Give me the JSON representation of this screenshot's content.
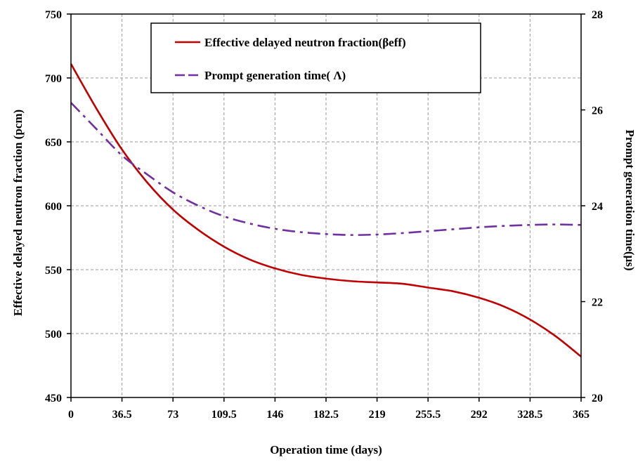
{
  "chart_data": {
    "type": "line",
    "title": "",
    "xlabel": "Operation time (days)",
    "ylabel_left": "Effective delayed neutron fraction (pcm)",
    "ylabel_right": "Prompt generation time(μs)",
    "xlim": [
      0,
      365
    ],
    "ylim_left": [
      450,
      750
    ],
    "ylim_right": [
      20,
      28
    ],
    "x_ticks": [
      "0",
      "36.5",
      "73",
      "109.5",
      "146",
      "182.5",
      "219",
      "255.5",
      "292",
      "328.5",
      "365"
    ],
    "y_ticks_left": [
      "450",
      "500",
      "550",
      "600",
      "650",
      "700",
      "750"
    ],
    "y_ticks_right": [
      "20",
      "22",
      "24",
      "26",
      "28"
    ],
    "grid": true,
    "legend_position": "top-center",
    "series": [
      {
        "name": "Effective delayed neutron fraction(βeff)",
        "axis": "left",
        "color": "#c00000",
        "style": "solid",
        "x": [
          0,
          18.25,
          36.5,
          54.75,
          73,
          91.25,
          109.5,
          127.75,
          146,
          164.25,
          182.5,
          200.75,
          219,
          237.25,
          255.5,
          273.75,
          292,
          310.25,
          328.5,
          346.75,
          365
        ],
        "values": [
          711,
          676,
          644,
          618,
          597,
          581,
          568,
          558,
          551,
          546,
          543,
          541,
          540,
          539,
          536,
          533,
          528,
          521,
          511,
          498,
          482
        ]
      },
      {
        "name": "Prompt generation time( Λ)",
        "axis": "right",
        "color": "#7030a0",
        "style": "dashdot",
        "x": [
          0,
          18.25,
          36.5,
          54.75,
          73,
          91.25,
          109.5,
          127.75,
          146,
          164.25,
          182.5,
          200.75,
          219,
          237.25,
          255.5,
          273.75,
          292,
          310.25,
          328.5,
          346.75,
          365
        ],
        "values": [
          26.15,
          25.6,
          25.05,
          24.65,
          24.28,
          24.0,
          23.78,
          23.63,
          23.52,
          23.45,
          23.41,
          23.39,
          23.4,
          23.43,
          23.47,
          23.51,
          23.55,
          23.58,
          23.6,
          23.61,
          23.6
        ]
      }
    ]
  }
}
